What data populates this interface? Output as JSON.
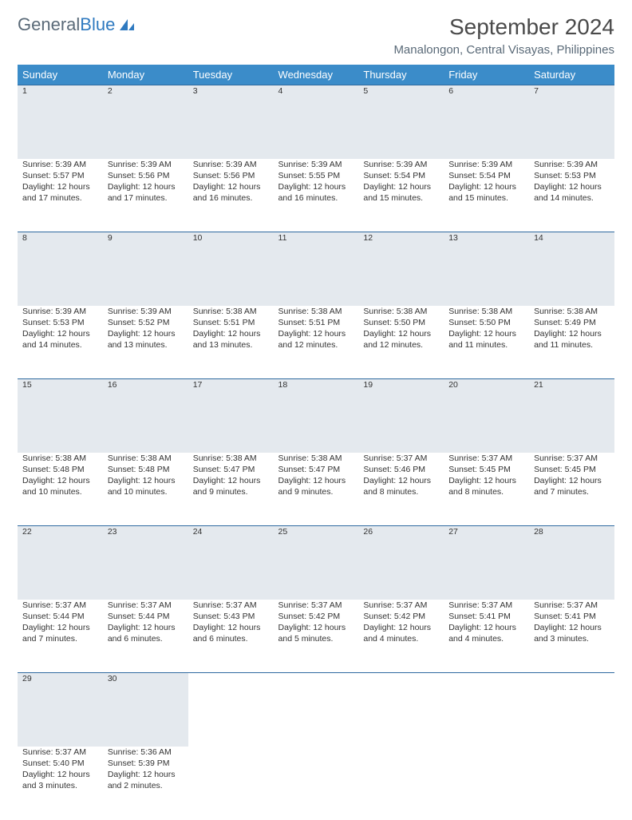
{
  "logo": {
    "word1": "General",
    "word2": "Blue"
  },
  "title": "September 2024",
  "subtitle": "Manalongon, Central Visayas, Philippines",
  "colors": {
    "header_bg": "#3b8cc9",
    "header_text": "#ffffff",
    "daynum_bg": "#e4e9ee",
    "daynum_text": "#4a5560",
    "rule": "#2f6aa0",
    "body_text": "#333333",
    "logo_gray": "#5a6a78",
    "logo_blue": "#2f7ac0"
  },
  "weekdays": [
    "Sunday",
    "Monday",
    "Tuesday",
    "Wednesday",
    "Thursday",
    "Friday",
    "Saturday"
  ],
  "weeks": [
    [
      {
        "n": "1",
        "sr": "Sunrise: 5:39 AM",
        "ss": "Sunset: 5:57 PM",
        "d1": "Daylight: 12 hours",
        "d2": "and 17 minutes."
      },
      {
        "n": "2",
        "sr": "Sunrise: 5:39 AM",
        "ss": "Sunset: 5:56 PM",
        "d1": "Daylight: 12 hours",
        "d2": "and 17 minutes."
      },
      {
        "n": "3",
        "sr": "Sunrise: 5:39 AM",
        "ss": "Sunset: 5:56 PM",
        "d1": "Daylight: 12 hours",
        "d2": "and 16 minutes."
      },
      {
        "n": "4",
        "sr": "Sunrise: 5:39 AM",
        "ss": "Sunset: 5:55 PM",
        "d1": "Daylight: 12 hours",
        "d2": "and 16 minutes."
      },
      {
        "n": "5",
        "sr": "Sunrise: 5:39 AM",
        "ss": "Sunset: 5:54 PM",
        "d1": "Daylight: 12 hours",
        "d2": "and 15 minutes."
      },
      {
        "n": "6",
        "sr": "Sunrise: 5:39 AM",
        "ss": "Sunset: 5:54 PM",
        "d1": "Daylight: 12 hours",
        "d2": "and 15 minutes."
      },
      {
        "n": "7",
        "sr": "Sunrise: 5:39 AM",
        "ss": "Sunset: 5:53 PM",
        "d1": "Daylight: 12 hours",
        "d2": "and 14 minutes."
      }
    ],
    [
      {
        "n": "8",
        "sr": "Sunrise: 5:39 AM",
        "ss": "Sunset: 5:53 PM",
        "d1": "Daylight: 12 hours",
        "d2": "and 14 minutes."
      },
      {
        "n": "9",
        "sr": "Sunrise: 5:39 AM",
        "ss": "Sunset: 5:52 PM",
        "d1": "Daylight: 12 hours",
        "d2": "and 13 minutes."
      },
      {
        "n": "10",
        "sr": "Sunrise: 5:38 AM",
        "ss": "Sunset: 5:51 PM",
        "d1": "Daylight: 12 hours",
        "d2": "and 13 minutes."
      },
      {
        "n": "11",
        "sr": "Sunrise: 5:38 AM",
        "ss": "Sunset: 5:51 PM",
        "d1": "Daylight: 12 hours",
        "d2": "and 12 minutes."
      },
      {
        "n": "12",
        "sr": "Sunrise: 5:38 AM",
        "ss": "Sunset: 5:50 PM",
        "d1": "Daylight: 12 hours",
        "d2": "and 12 minutes."
      },
      {
        "n": "13",
        "sr": "Sunrise: 5:38 AM",
        "ss": "Sunset: 5:50 PM",
        "d1": "Daylight: 12 hours",
        "d2": "and 11 minutes."
      },
      {
        "n": "14",
        "sr": "Sunrise: 5:38 AM",
        "ss": "Sunset: 5:49 PM",
        "d1": "Daylight: 12 hours",
        "d2": "and 11 minutes."
      }
    ],
    [
      {
        "n": "15",
        "sr": "Sunrise: 5:38 AM",
        "ss": "Sunset: 5:48 PM",
        "d1": "Daylight: 12 hours",
        "d2": "and 10 minutes."
      },
      {
        "n": "16",
        "sr": "Sunrise: 5:38 AM",
        "ss": "Sunset: 5:48 PM",
        "d1": "Daylight: 12 hours",
        "d2": "and 10 minutes."
      },
      {
        "n": "17",
        "sr": "Sunrise: 5:38 AM",
        "ss": "Sunset: 5:47 PM",
        "d1": "Daylight: 12 hours",
        "d2": "and 9 minutes."
      },
      {
        "n": "18",
        "sr": "Sunrise: 5:38 AM",
        "ss": "Sunset: 5:47 PM",
        "d1": "Daylight: 12 hours",
        "d2": "and 9 minutes."
      },
      {
        "n": "19",
        "sr": "Sunrise: 5:37 AM",
        "ss": "Sunset: 5:46 PM",
        "d1": "Daylight: 12 hours",
        "d2": "and 8 minutes."
      },
      {
        "n": "20",
        "sr": "Sunrise: 5:37 AM",
        "ss": "Sunset: 5:45 PM",
        "d1": "Daylight: 12 hours",
        "d2": "and 8 minutes."
      },
      {
        "n": "21",
        "sr": "Sunrise: 5:37 AM",
        "ss": "Sunset: 5:45 PM",
        "d1": "Daylight: 12 hours",
        "d2": "and 7 minutes."
      }
    ],
    [
      {
        "n": "22",
        "sr": "Sunrise: 5:37 AM",
        "ss": "Sunset: 5:44 PM",
        "d1": "Daylight: 12 hours",
        "d2": "and 7 minutes."
      },
      {
        "n": "23",
        "sr": "Sunrise: 5:37 AM",
        "ss": "Sunset: 5:44 PM",
        "d1": "Daylight: 12 hours",
        "d2": "and 6 minutes."
      },
      {
        "n": "24",
        "sr": "Sunrise: 5:37 AM",
        "ss": "Sunset: 5:43 PM",
        "d1": "Daylight: 12 hours",
        "d2": "and 6 minutes."
      },
      {
        "n": "25",
        "sr": "Sunrise: 5:37 AM",
        "ss": "Sunset: 5:42 PM",
        "d1": "Daylight: 12 hours",
        "d2": "and 5 minutes."
      },
      {
        "n": "26",
        "sr": "Sunrise: 5:37 AM",
        "ss": "Sunset: 5:42 PM",
        "d1": "Daylight: 12 hours",
        "d2": "and 4 minutes."
      },
      {
        "n": "27",
        "sr": "Sunrise: 5:37 AM",
        "ss": "Sunset: 5:41 PM",
        "d1": "Daylight: 12 hours",
        "d2": "and 4 minutes."
      },
      {
        "n": "28",
        "sr": "Sunrise: 5:37 AM",
        "ss": "Sunset: 5:41 PM",
        "d1": "Daylight: 12 hours",
        "d2": "and 3 minutes."
      }
    ],
    [
      {
        "n": "29",
        "sr": "Sunrise: 5:37 AM",
        "ss": "Sunset: 5:40 PM",
        "d1": "Daylight: 12 hours",
        "d2": "and 3 minutes."
      },
      {
        "n": "30",
        "sr": "Sunrise: 5:36 AM",
        "ss": "Sunset: 5:39 PM",
        "d1": "Daylight: 12 hours",
        "d2": "and 2 minutes."
      },
      null,
      null,
      null,
      null,
      null
    ]
  ]
}
